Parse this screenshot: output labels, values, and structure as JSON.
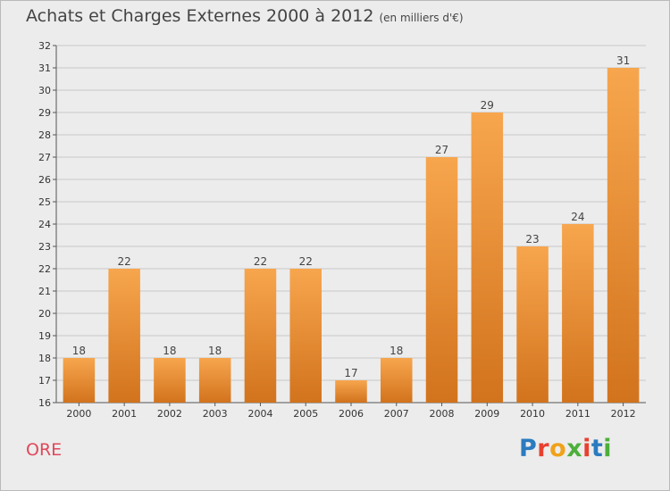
{
  "header": {
    "title": "Achats et Charges Externes 2000 à 2012",
    "subtitle": "(en milliers d'€)"
  },
  "footer": {
    "place": "ORE",
    "brand": "Proxiti",
    "brand_colors": [
      "#2b7bbf",
      "#e8402f",
      "#f0a21a",
      "#4caf3a",
      "#e8402f",
      "#2b7bbf",
      "#4caf3a"
    ]
  },
  "chart_data": {
    "type": "bar",
    "categories": [
      "2000",
      "2001",
      "2002",
      "2003",
      "2004",
      "2005",
      "2006",
      "2007",
      "2008",
      "2009",
      "2010",
      "2011",
      "2012"
    ],
    "values": [
      18,
      22,
      18,
      18,
      22,
      22,
      17,
      18,
      27,
      29,
      23,
      24,
      31
    ],
    "ylim": [
      16,
      32
    ],
    "yticks": [
      16,
      17,
      18,
      19,
      20,
      21,
      22,
      23,
      24,
      25,
      26,
      27,
      28,
      29,
      30,
      31,
      32
    ],
    "grid": true,
    "bar_color_top": "#f7a64e",
    "bar_color_bottom": "#d2731d"
  }
}
